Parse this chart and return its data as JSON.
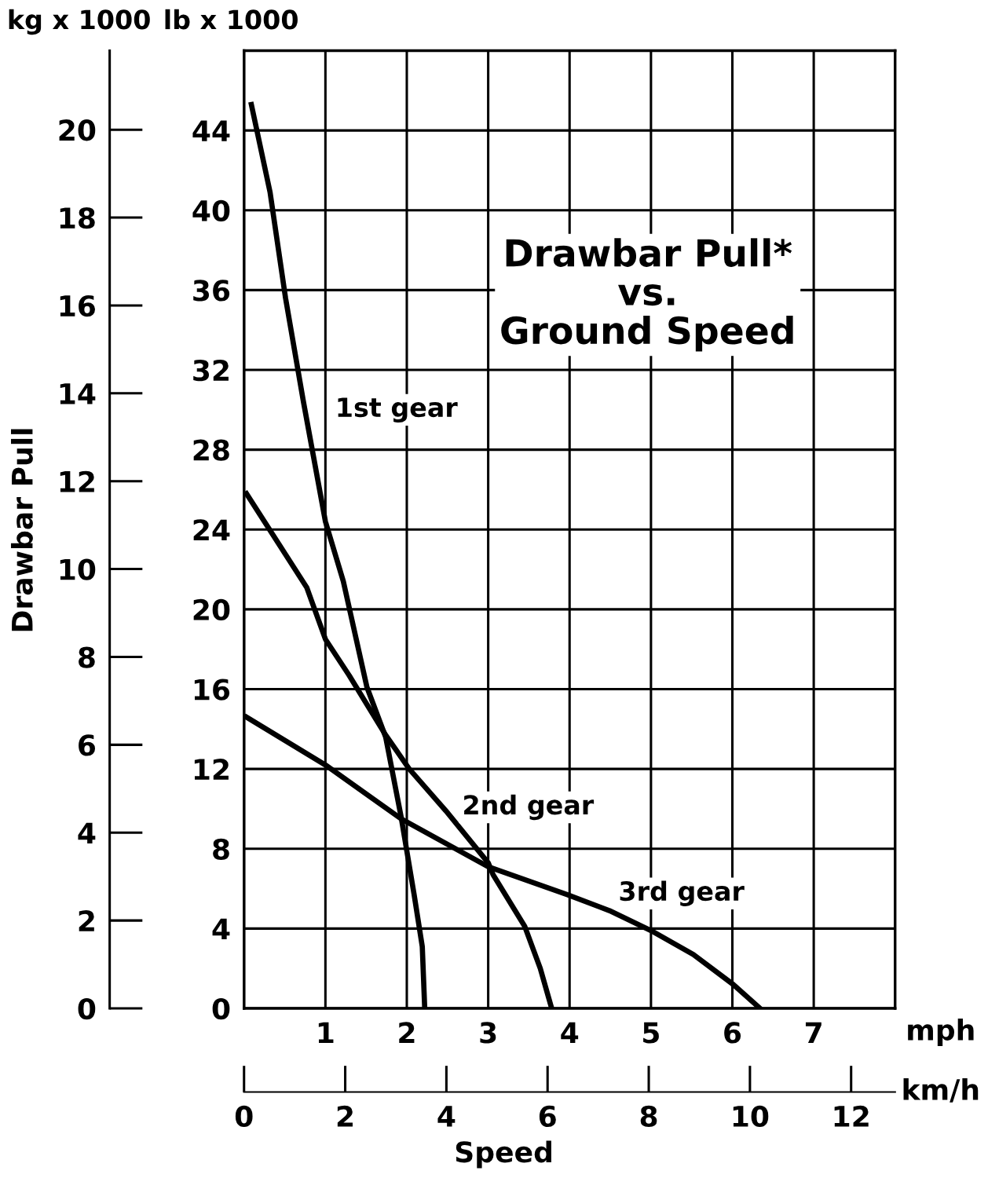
{
  "chart_data": {
    "type": "line",
    "title": "Drawbar Pull*\nvs.\nGround Speed",
    "xlabel": "mph",
    "x2label": "km/h",
    "ylabel": "lb x 1000",
    "y2label": "kg x 1000",
    "annotations": [
      "Drawbar Pull",
      "Speed"
    ],
    "series": [
      {
        "name": "1st gear",
        "color": "#000000",
        "x": [
          0.09,
          0.32,
          0.51,
          0.73,
          1.0,
          1.22,
          1.51,
          1.74,
          1.93,
          2.09,
          2.19,
          2.22
        ],
        "values": [
          45.3,
          40.9,
          35.6,
          30.4,
          24.4,
          21.4,
          16.1,
          13.6,
          9.6,
          5.7,
          3.1,
          0
        ]
      },
      {
        "name": "2nd gear",
        "color": "#000000",
        "x": [
          0.03,
          0.77,
          1.0,
          1.29,
          1.74,
          2.03,
          2.48,
          3.0,
          3.06,
          3.45,
          3.64,
          3.78
        ],
        "values": [
          25.8,
          21.1,
          18.5,
          16.7,
          13.7,
          12.0,
          9.9,
          7.3,
          6.7,
          4.1,
          2.0,
          0
        ]
      },
      {
        "name": "3rd gear",
        "color": "#000000",
        "x": [
          0.03,
          1.0,
          1.93,
          3.0,
          3.97,
          4.49,
          5.0,
          5.52,
          6.01,
          6.34
        ],
        "values": [
          14.6,
          12.2,
          9.5,
          7.1,
          5.7,
          4.9,
          3.9,
          2.7,
          1.2,
          0
        ]
      }
    ],
    "xlim": [
      0,
      8
    ],
    "xticks": [
      {
        "value": 0,
        "label": null
      },
      1,
      2,
      3,
      4,
      5,
      6,
      7,
      {
        "value": 8,
        "label": null
      }
    ],
    "ylim": [
      0,
      48
    ],
    "yticks": [
      0,
      4,
      8,
      12,
      16,
      20,
      24,
      28,
      32,
      36,
      40,
      44,
      {
        "value": 48,
        "label": null
      }
    ],
    "y2lim": [
      0,
      21.8
    ],
    "y2ticks": [
      0,
      2,
      4,
      6,
      8,
      10,
      12,
      14,
      16,
      18,
      20
    ],
    "x2lim": [
      0,
      12.87
    ],
    "x2ticks": [
      0,
      2,
      4,
      6,
      8,
      10,
      12
    ],
    "grid": true
  }
}
